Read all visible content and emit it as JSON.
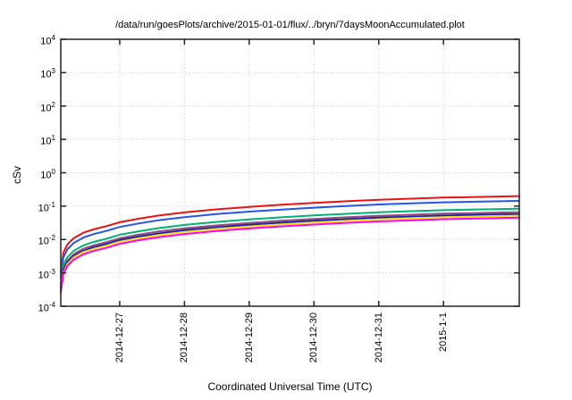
{
  "window": {
    "background": "#ffffff",
    "text_color": "#000000"
  },
  "chart_data": {
    "type": "line",
    "title": "/data/run/goesPlots/archive/2015-01-01/flux/../bryn/7daysMoonAccumulated.plot",
    "xlabel": "Coordinated Universal Time (UTC)",
    "ylabel": "cSv",
    "y_scale": "log10",
    "y_exponent_min": -4,
    "y_exponent_max": 4,
    "grid": "dotted major",
    "legend": "none",
    "axis_color": "#222222",
    "grid_color": "#c3c9d2",
    "x_span_days": 7.08,
    "x_ticks": [
      {
        "label": "2014-12-27",
        "day": 0.91
      },
      {
        "label": "2014-12-28",
        "day": 1.91
      },
      {
        "label": "2014-12-29",
        "day": 2.91
      },
      {
        "label": "2014-12-30",
        "day": 3.91
      },
      {
        "label": "2014-12-31",
        "day": 4.91
      },
      {
        "label": "2015-1-1",
        "day": 5.91
      }
    ],
    "x_days": [
      0,
      0.04,
      0.1,
      0.2,
      0.35,
      0.5,
      0.7,
      0.91,
      1.2,
      1.5,
      1.91,
      2.4,
      2.91,
      3.41,
      3.91,
      4.41,
      4.91,
      5.41,
      5.91,
      6.5,
      7.08
    ],
    "series": [
      {
        "name": "red",
        "color": "#ee1111",
        "values": [
          0.0011,
          0.004,
          0.007,
          0.011,
          0.016,
          0.02,
          0.025,
          0.033,
          0.042,
          0.052,
          0.065,
          0.08,
          0.095,
          0.11,
          0.125,
          0.14,
          0.155,
          0.168,
          0.18,
          0.19,
          0.2
        ]
      },
      {
        "name": "blue",
        "color": "#2255e8",
        "values": [
          0.00079,
          0.0029,
          0.005,
          0.0079,
          0.0115,
          0.0144,
          0.018,
          0.0238,
          0.0302,
          0.0374,
          0.0468,
          0.0576,
          0.0684,
          0.0792,
          0.09,
          0.101,
          0.112,
          0.121,
          0.13,
          0.137,
          0.144
        ]
      },
      {
        "name": "green",
        "color": "#00b273",
        "values": [
          0.00046,
          0.0017,
          0.0029,
          0.0046,
          0.0067,
          0.0084,
          0.0105,
          0.0139,
          0.0176,
          0.0218,
          0.0273,
          0.0336,
          0.0399,
          0.0462,
          0.0525,
          0.0588,
          0.0651,
          0.0706,
          0.0756,
          0.0798,
          0.084
        ]
      },
      {
        "name": "purple",
        "color": "#8e4a78",
        "values": [
          0.00036,
          0.0013,
          0.0023,
          0.0036,
          0.0053,
          0.0066,
          0.0083,
          0.0109,
          0.0139,
          0.0172,
          0.0215,
          0.0264,
          0.0314,
          0.0363,
          0.0413,
          0.0462,
          0.0512,
          0.0554,
          0.0594,
          0.0627,
          0.066
        ]
      },
      {
        "name": "navy",
        "color": "#1c1cb0",
        "values": [
          0.00032,
          0.0012,
          0.002,
          0.0032,
          0.0046,
          0.0058,
          0.0073,
          0.0096,
          0.0122,
          0.0151,
          0.0189,
          0.0232,
          0.0276,
          0.0319,
          0.0363,
          0.0406,
          0.045,
          0.0487,
          0.0522,
          0.0551,
          0.058
        ]
      },
      {
        "name": "yellow",
        "color": "#f0e010",
        "values": [
          0.00029,
          0.001,
          0.0018,
          0.0029,
          0.0042,
          0.0052,
          0.0065,
          0.0086,
          0.0109,
          0.0135,
          0.0169,
          0.0208,
          0.0247,
          0.0286,
          0.0325,
          0.0364,
          0.0403,
          0.0437,
          0.0468,
          0.0494,
          0.052
        ]
      },
      {
        "name": "magenta",
        "color": "#ff00f0",
        "values": [
          0.00025,
          0.0009,
          0.0016,
          0.0025,
          0.0036,
          0.0045,
          0.0056,
          0.0074,
          0.0095,
          0.0117,
          0.0146,
          0.018,
          0.0214,
          0.0248,
          0.0281,
          0.0315,
          0.0349,
          0.0378,
          0.0405,
          0.0428,
          0.045
        ]
      }
    ]
  }
}
